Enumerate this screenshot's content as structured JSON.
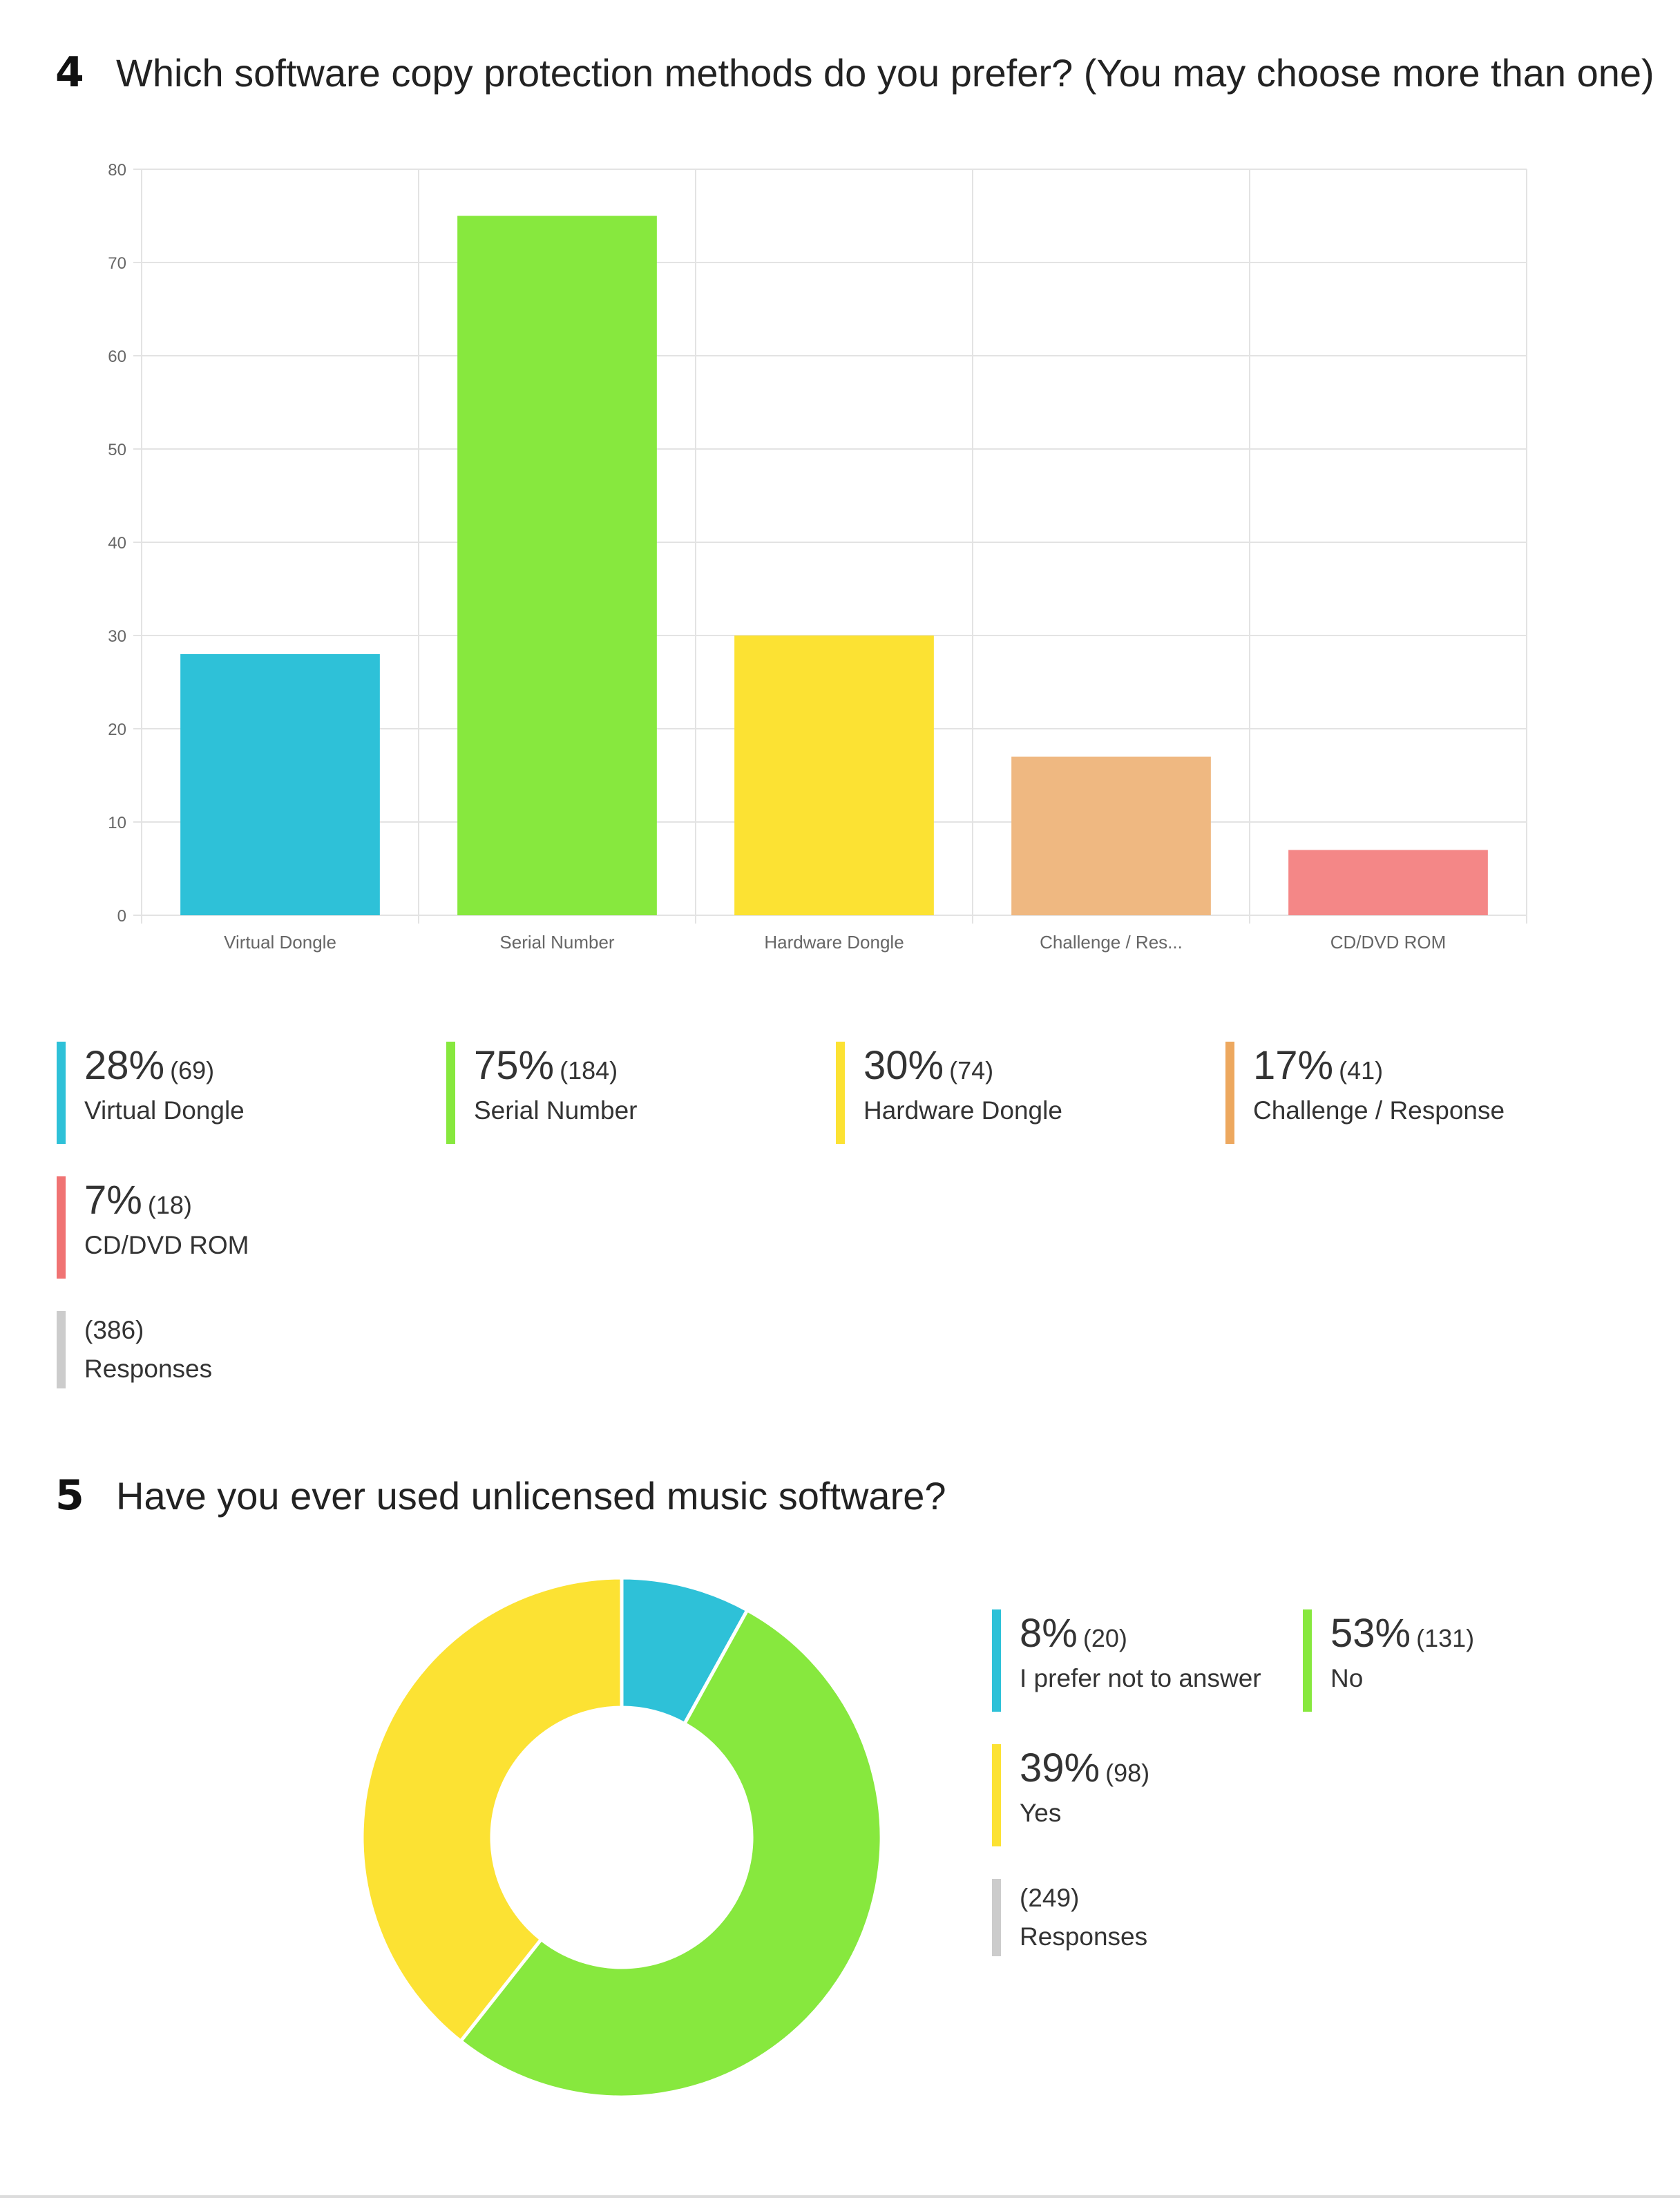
{
  "q4": {
    "number": "4",
    "title": "Which software copy protection methods do you prefer? (You may choose more than one)",
    "legend": [
      {
        "pct": "28%",
        "count": "(69)",
        "label": "Virtual Dongle",
        "color": "#2ec1d8"
      },
      {
        "pct": "75%",
        "count": "(184)",
        "label": "Serial Number",
        "color": "#87e83e"
      },
      {
        "pct": "30%",
        "count": "(74)",
        "label": "Hardware Dongle",
        "color": "#fce233"
      },
      {
        "pct": "17%",
        "count": "(41)",
        "label": "Challenge / Response",
        "color": "#eda85f"
      },
      {
        "pct": "7%",
        "count": "(18)",
        "label": "CD/DVD ROM",
        "color": "#f07373"
      }
    ],
    "responses": {
      "count": "(386)",
      "label": "Responses",
      "color": "#cccccc"
    }
  },
  "q5": {
    "number": "5",
    "title": "Have you ever used unlicensed music software?",
    "legend": [
      {
        "pct": "8%",
        "count": "(20)",
        "label": "I prefer not to answer",
        "color": "#2ec1d8"
      },
      {
        "pct": "53%",
        "count": "(131)",
        "label": "No",
        "color": "#87e83e"
      },
      {
        "pct": "39%",
        "count": "(98)",
        "label": "Yes",
        "color": "#fce233"
      }
    ],
    "responses": {
      "count": "(249)",
      "label": "Responses",
      "color": "#cccccc"
    }
  },
  "chart_data": [
    {
      "type": "bar",
      "categories": [
        "Virtual Dongle",
        "Serial Number",
        "Hardware Dongle",
        "Challenge / Res...",
        "CD/DVD ROM"
      ],
      "values": [
        28,
        75,
        30,
        17,
        7
      ],
      "ylim": [
        0,
        80
      ],
      "yticks": [
        0,
        10,
        20,
        30,
        40,
        50,
        60,
        70,
        80
      ],
      "colors": [
        "#2ec1d8",
        "#87e83e",
        "#fce233",
        "#efb881",
        "#f48787"
      ],
      "grid": true
    },
    {
      "type": "pie",
      "donut": true,
      "categories": [
        "I prefer not to answer",
        "No",
        "Yes"
      ],
      "values": [
        20,
        131,
        98
      ],
      "colors": [
        "#2ec1d8",
        "#87e83e",
        "#fce233"
      ]
    }
  ]
}
